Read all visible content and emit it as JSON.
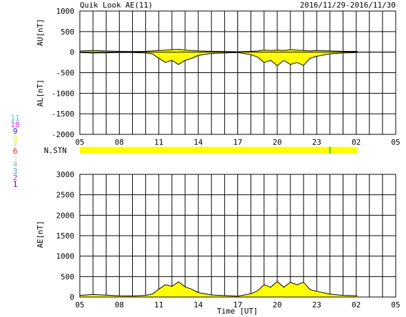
{
  "header": {
    "title": "Quik Look AE(11)",
    "date_range": "2016/11/29-2016/11/30"
  },
  "station_legend": {
    "items": [
      {
        "num": "11",
        "color": "#22dddd"
      },
      {
        "num": "10",
        "color": "#dd22dd"
      },
      {
        "num": "9",
        "color": "#2222cc"
      },
      {
        "num": "8",
        "color": "#eeee44"
      },
      {
        "num": "7",
        "color": "#99ee66"
      },
      {
        "num": "6",
        "color": "#dd2222"
      },
      {
        "num": "5",
        "color": "#dddddd"
      },
      {
        "num": "4",
        "color": "#aaaaaa"
      },
      {
        "num": "3",
        "color": "#22aaaa"
      },
      {
        "num": "2",
        "color": "#aa22aa"
      },
      {
        "num": "1",
        "color": "#2222aa"
      }
    ]
  },
  "chart_data": [
    {
      "type": "area",
      "panel": "AU/AL",
      "ylabel_upper": "AU[nT]",
      "ylabel_lower": "AL[nT]",
      "ylim": [
        -2000,
        1000
      ],
      "yticks": [
        1000,
        500,
        0,
        -500,
        -1000,
        -1500,
        -2000
      ],
      "xlim": [
        5,
        29
      ],
      "xticks": [
        "05",
        "08",
        "11",
        "14",
        "17",
        "20",
        "23",
        "02",
        "05"
      ],
      "fill_color": "#ffff00",
      "grid": true,
      "data_end_hour": 26.1,
      "au": {
        "x": [
          5,
          6,
          7,
          8,
          9,
          10,
          10.5,
          11,
          11.5,
          12,
          12.5,
          13,
          13.5,
          14,
          15,
          16,
          17,
          18,
          18.5,
          19,
          19.5,
          20,
          20.5,
          21,
          21.5,
          22,
          22.5,
          23,
          24,
          25,
          26.1
        ],
        "y": [
          30,
          40,
          30,
          20,
          15,
          20,
          30,
          40,
          50,
          60,
          70,
          50,
          40,
          30,
          20,
          15,
          10,
          20,
          30,
          50,
          40,
          50,
          40,
          60,
          50,
          40,
          30,
          40,
          30,
          20,
          20
        ]
      },
      "al": {
        "x": [
          5,
          6,
          7,
          8,
          9,
          10,
          10.5,
          11,
          11.5,
          12,
          12.5,
          13,
          13.5,
          14,
          15,
          16,
          17,
          18,
          18.5,
          19,
          19.5,
          20,
          20.5,
          21,
          21.5,
          22,
          22.5,
          23,
          24,
          25,
          26.1
        ],
        "y": [
          -10,
          -20,
          -15,
          -10,
          -10,
          -20,
          -40,
          -150,
          -250,
          -200,
          -300,
          -200,
          -150,
          -80,
          -30,
          -20,
          -10,
          -60,
          -120,
          -250,
          -200,
          -330,
          -200,
          -300,
          -250,
          -320,
          -150,
          -100,
          -40,
          -20,
          -10
        ]
      }
    },
    {
      "type": "bar",
      "panel": "N.STN",
      "label": "N.STN",
      "xlim": [
        5,
        29
      ],
      "data_end_hour": 26.1,
      "fill_color": "#ffff00",
      "marker_hour": 24.0,
      "marker_color": "#33cc33"
    },
    {
      "type": "area",
      "panel": "AE",
      "ylabel": "AE[nT]",
      "xlabel": "Time [UT]",
      "ylim": [
        0,
        3000
      ],
      "yticks": [
        3000,
        2500,
        2000,
        1500,
        1000,
        500,
        0
      ],
      "xlim": [
        5,
        29
      ],
      "xticks": [
        "05",
        "08",
        "11",
        "14",
        "17",
        "20",
        "23",
        "02",
        "05"
      ],
      "fill_color": "#ffff00",
      "grid": true,
      "data_end_hour": 26.1,
      "ae": {
        "x": [
          5,
          6,
          7,
          8,
          9,
          10,
          10.5,
          11,
          11.5,
          12,
          12.5,
          13,
          13.5,
          14,
          15,
          16,
          17,
          18,
          18.5,
          19,
          19.5,
          20,
          20.5,
          21,
          21.5,
          22,
          22.5,
          23,
          24,
          25,
          26.1
        ],
        "y": [
          40,
          60,
          45,
          30,
          25,
          40,
          70,
          190,
          300,
          260,
          370,
          250,
          190,
          110,
          50,
          35,
          20,
          80,
          150,
          300,
          240,
          380,
          240,
          360,
          300,
          360,
          180,
          140,
          70,
          40,
          30
        ]
      }
    }
  ]
}
